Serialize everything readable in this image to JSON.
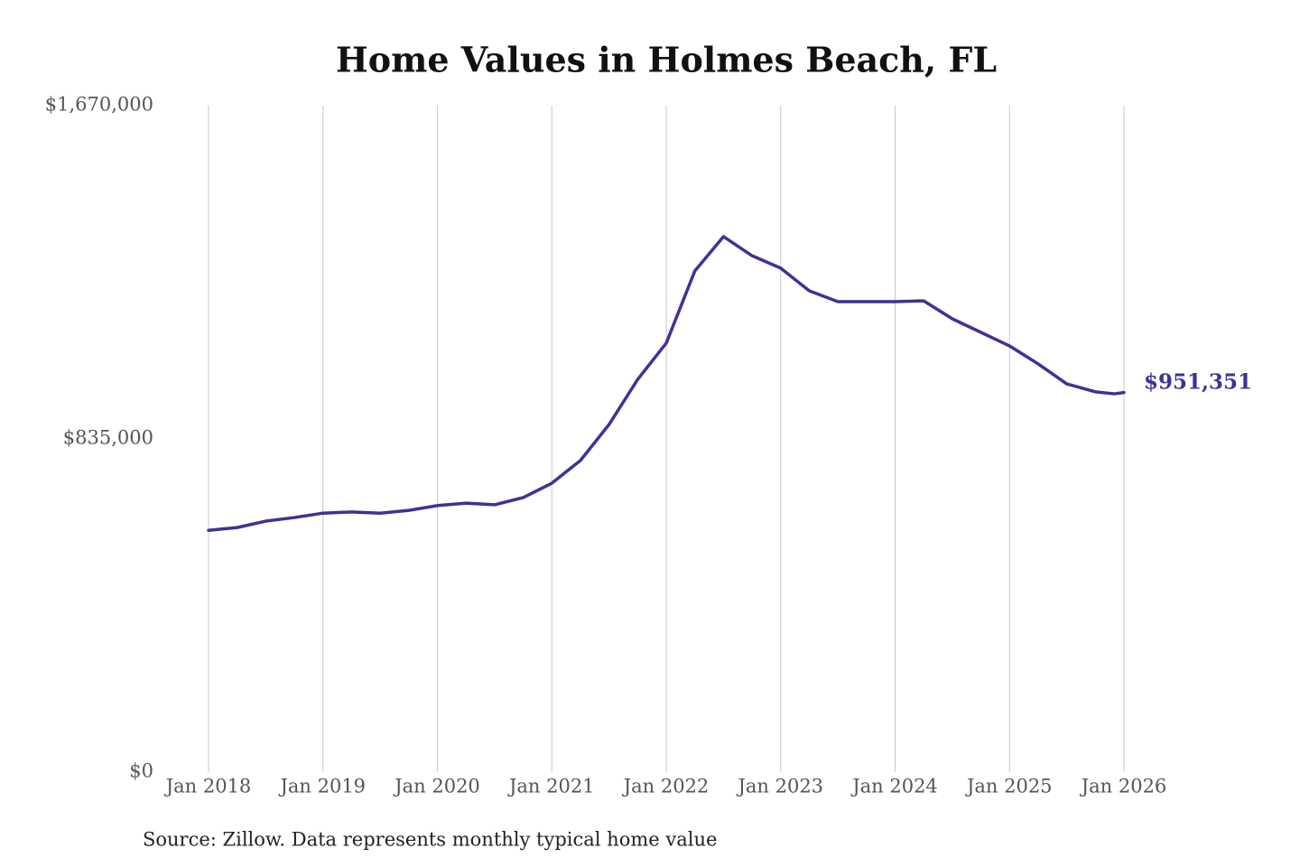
{
  "chart_data": {
    "type": "line",
    "title": "Home Values in Holmes Beach, FL",
    "source": "Source: Zillow. Data represents monthly typical home value",
    "x": [
      "2018-01",
      "2018-04",
      "2018-07",
      "2018-10",
      "2019-01",
      "2019-04",
      "2019-07",
      "2019-10",
      "2020-01",
      "2020-04",
      "2020-07",
      "2020-10",
      "2021-01",
      "2021-04",
      "2021-07",
      "2021-10",
      "2022-01",
      "2022-04",
      "2022-07",
      "2022-10",
      "2023-01",
      "2023-04",
      "2023-07",
      "2023-10",
      "2024-01",
      "2024-04",
      "2024-07",
      "2024-10",
      "2025-01",
      "2025-04",
      "2025-07",
      "2025-10",
      "2025-12",
      "2026-01"
    ],
    "series": [
      {
        "name": "Home value",
        "color": "#3b3494",
        "values": [
          606000,
          613000,
          629000,
          638000,
          649000,
          652000,
          649000,
          656000,
          668000,
          674000,
          670000,
          688000,
          724000,
          781000,
          871000,
          984000,
          1075000,
          1256000,
          1342000,
          1294000,
          1263000,
          1206000,
          1179000,
          1179000,
          1179000,
          1181000,
          1136000,
          1102000,
          1068000,
          1023000,
          973000,
          953000,
          948000,
          951351
        ],
        "value_labels": [
          null,
          null,
          null,
          null,
          null,
          null,
          null,
          null,
          null,
          null,
          null,
          null,
          null,
          null,
          null,
          null,
          null,
          null,
          null,
          null,
          null,
          null,
          null,
          null,
          null,
          null,
          null,
          null,
          null,
          null,
          null,
          null,
          null,
          "$951,351"
        ]
      }
    ],
    "xlim": [
      "2018-01",
      "2026-01"
    ],
    "xticks": [
      {
        "value": "2018-01",
        "label": "Jan 2018"
      },
      {
        "value": "2019-01",
        "label": "Jan 2019"
      },
      {
        "value": "2020-01",
        "label": "Jan 2020"
      },
      {
        "value": "2021-01",
        "label": "Jan 2021"
      },
      {
        "value": "2022-01",
        "label": "Jan 2022"
      },
      {
        "value": "2023-01",
        "label": "Jan 2023"
      },
      {
        "value": "2024-01",
        "label": "Jan 2024"
      },
      {
        "value": "2025-01",
        "label": "Jan 2025"
      },
      {
        "value": "2026-01",
        "label": "Jan 2026"
      }
    ],
    "ylim": [
      0,
      1670000
    ],
    "yticks": [
      {
        "value": 0,
        "label": "$0"
      },
      {
        "value": 835000,
        "label": "$835,000"
      },
      {
        "value": 1670000,
        "label": "$1,670,000"
      }
    ],
    "grid": "x"
  }
}
